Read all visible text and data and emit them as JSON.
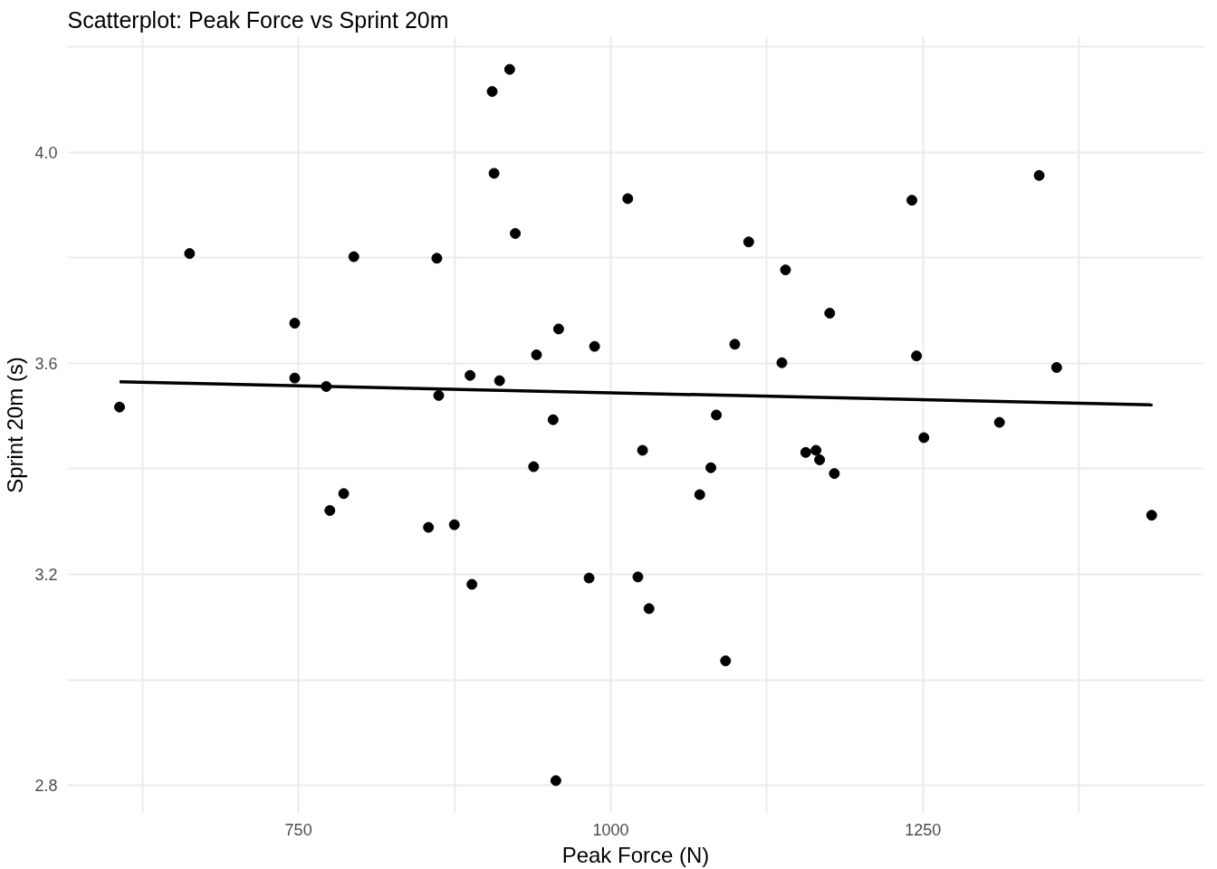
{
  "chart_data": {
    "type": "scatter",
    "title": "Scatterplot: Peak Force vs Sprint 20m",
    "xlabel": "Peak Force (N)",
    "ylabel": "Sprint 20m (s)",
    "xlim": [
      565,
      1475
    ],
    "ylim": [
      2.747,
      4.219
    ],
    "xticks": [
      {
        "value": 625,
        "label": null
      },
      750,
      {
        "value": 875,
        "label": null
      },
      1000,
      {
        "value": 1125,
        "label": null
      },
      1250,
      {
        "value": 1375,
        "label": null
      }
    ],
    "yticks": [
      {
        "value": 2.8,
        "label": "2.8"
      },
      {
        "value": 3.0,
        "label": null
      },
      {
        "value": 3.2,
        "label": "3.2"
      },
      {
        "value": 3.4,
        "label": null
      },
      {
        "value": 3.6,
        "label": "3.6"
      },
      {
        "value": 3.8,
        "label": null
      },
      {
        "value": 4.0,
        "label": "4.0"
      },
      {
        "value": 4.2,
        "label": null
      }
    ],
    "grid": true,
    "series": [
      {
        "marker": "circle",
        "color": "#000000",
        "x": [
          606.7,
          662.8,
          747.0,
          747.0,
          772.2,
          775.1,
          786.2,
          794.3,
          854.1,
          860.8,
          862.3,
          874.8,
          887.4,
          888.9,
          905.1,
          906.6,
          911.0,
          919.1,
          923.6,
          938.3,
          940.6,
          953.9,
          956.1,
          958.3,
          982.7,
          987.1,
          1013.7,
          1021.8,
          1025.5,
          1030.7,
          1071.3,
          1080.2,
          1084.6,
          1092.0,
          1099.4,
          1110.5,
          1137.1,
          1140.0,
          1156.2,
          1164.4,
          1167.3,
          1175.4,
          1179.1,
          1241.2,
          1244.9,
          1250.8,
          1311.3,
          1343.1,
          1357.1,
          1433.2
        ],
        "values": [
          3.517,
          3.808,
          3.676,
          3.572,
          3.556,
          3.321,
          3.353,
          3.802,
          3.289,
          3.799,
          3.539,
          3.294,
          3.577,
          3.181,
          4.115,
          3.96,
          3.567,
          4.157,
          3.846,
          3.404,
          3.616,
          3.493,
          2.809,
          3.665,
          3.193,
          3.632,
          3.912,
          3.195,
          3.435,
          3.135,
          3.351,
          3.402,
          3.502,
          3.036,
          3.636,
          3.83,
          3.601,
          3.777,
          3.431,
          3.435,
          3.417,
          3.695,
          3.391,
          3.909,
          3.614,
          3.459,
          3.488,
          3.956,
          3.592,
          3.312
        ]
      },
      {
        "type": "line",
        "color": "#000000",
        "line_style": "solid",
        "x": [
          606.7,
          1433.9
        ],
        "values": [
          3.565,
          3.521
        ]
      }
    ]
  }
}
